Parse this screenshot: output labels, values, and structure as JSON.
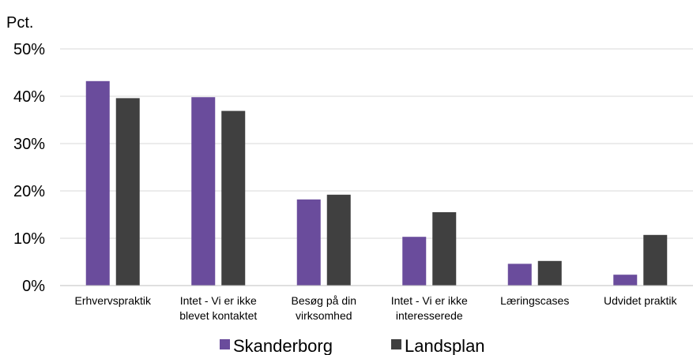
{
  "chart_data": {
    "type": "bar",
    "ylabel": "Pct.",
    "ylim": [
      0,
      50
    ],
    "yticks": [
      "0%",
      "10%",
      "20%",
      "30%",
      "40%",
      "50%"
    ],
    "grid": true,
    "legend_position": "bottom",
    "categories": [
      [
        "Erhvervspraktik"
      ],
      [
        "Intet - Vi er ikke",
        "blevet kontaktet"
      ],
      [
        "Besøg på din",
        "virksomhed"
      ],
      [
        "Intet - Vi er ikke",
        "interesserede"
      ],
      [
        "Læringscases"
      ],
      [
        "Udvidet praktik"
      ]
    ],
    "series": [
      {
        "name": "Skanderborg",
        "color": "#6a4c9c",
        "values": [
          43.2,
          39.8,
          18.2,
          10.3,
          4.6,
          2.3
        ]
      },
      {
        "name": "Landsplan",
        "color": "#404040",
        "values": [
          39.6,
          36.9,
          19.2,
          15.5,
          5.2,
          10.7
        ]
      }
    ]
  }
}
